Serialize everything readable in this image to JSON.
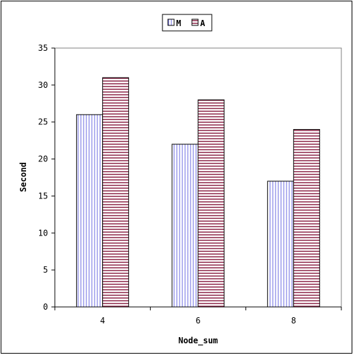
{
  "chart_data": {
    "type": "bar",
    "categories": [
      "4",
      "6",
      "8"
    ],
    "series": [
      {
        "name": "M",
        "values": [
          26,
          22,
          17
        ],
        "color": "#6a6ae0",
        "pattern": "vertical-stripes"
      },
      {
        "name": "A",
        "values": [
          31,
          28,
          24
        ],
        "color": "#8b2346",
        "pattern": "horizontal-stripes"
      }
    ],
    "xlabel": "Node_sum",
    "ylabel": "Second",
    "ylim": [
      0,
      35
    ],
    "yticks": [
      "0",
      "5",
      "10",
      "15",
      "20",
      "25",
      "30",
      "35"
    ],
    "legend_position": "top-center",
    "grid": false
  }
}
